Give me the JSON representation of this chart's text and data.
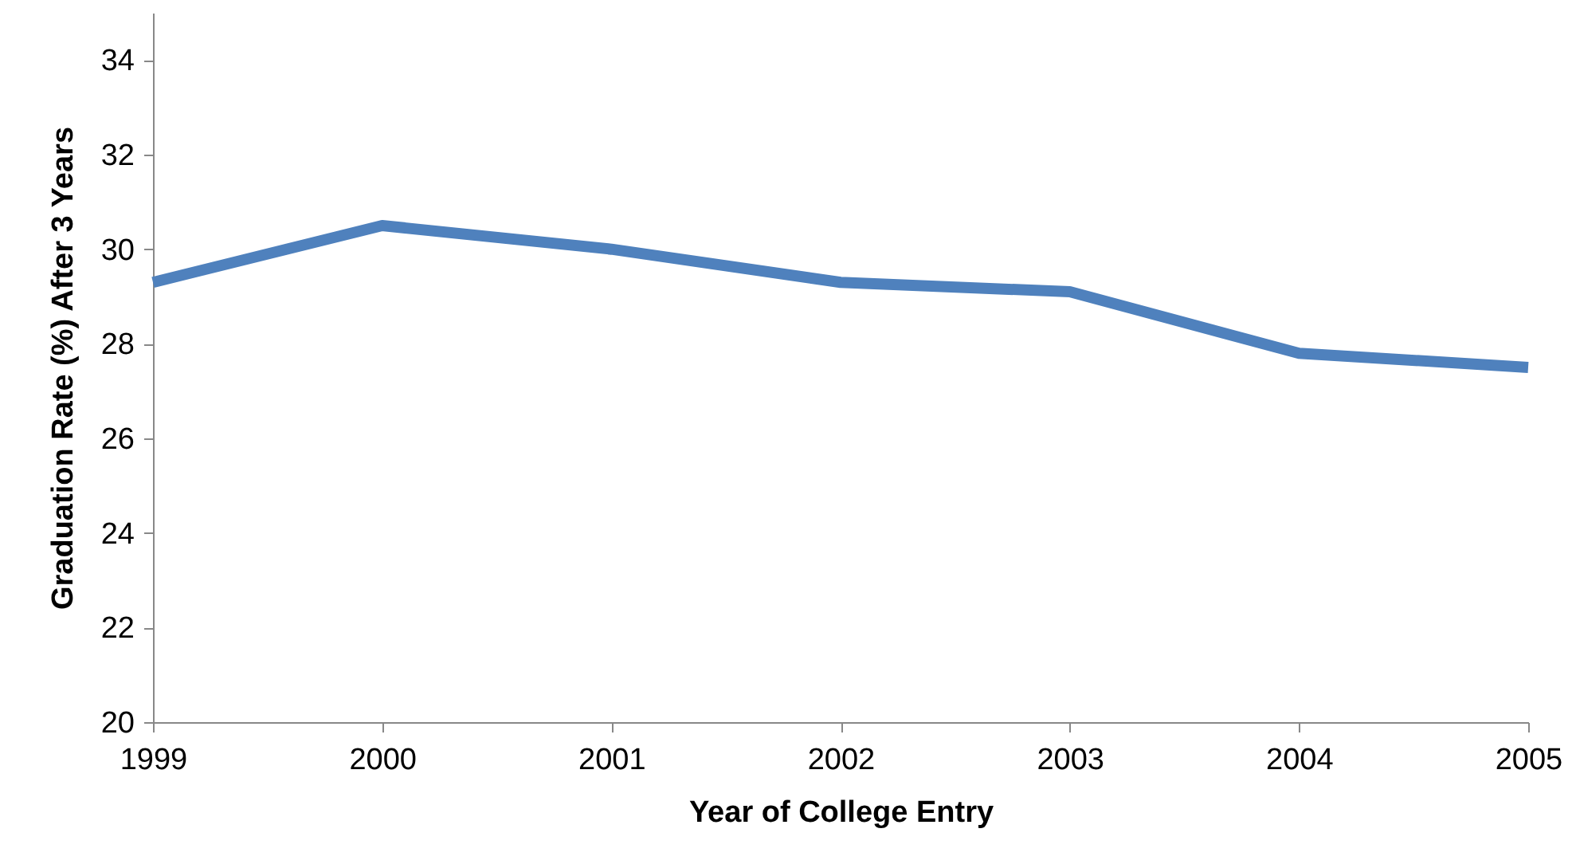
{
  "chart_data": {
    "type": "line",
    "xlabel": "Year of College Entry",
    "ylabel": "Graduation Rate (%) After 3 Years",
    "x": [
      1999,
      2000,
      2001,
      2002,
      2003,
      2004,
      2005
    ],
    "series": [
      {
        "color": "#4f81bd",
        "values": [
          29.3,
          30.5,
          30.0,
          29.3,
          29.1,
          27.8,
          27.5
        ]
      }
    ],
    "xlim": [
      1999,
      2005
    ],
    "xticks": [
      1999,
      2000,
      2001,
      2002,
      2003,
      2004,
      2005
    ],
    "ylim": [
      20,
      35
    ],
    "yticks": [
      20,
      22,
      24,
      26,
      28,
      30,
      32,
      34
    ],
    "grid": false,
    "marker": "none",
    "line_style": "solid"
  }
}
